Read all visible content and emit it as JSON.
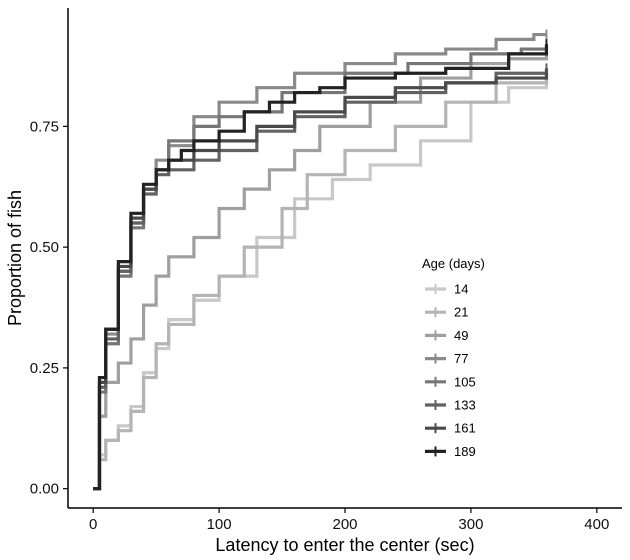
{
  "chart_data": {
    "type": "line",
    "step": true,
    "xlabel": "Latency to enter the center (sec)",
    "ylabel": "Proportion of fish",
    "xlim": [
      -20,
      420
    ],
    "ylim": [
      -0.04,
      0.995
    ],
    "xticks": [
      0,
      100,
      200,
      300,
      400
    ],
    "yticks": [
      0.0,
      0.25,
      0.5,
      0.75
    ],
    "ytick_labels": [
      "0.00",
      "0.25",
      "0.50",
      "0.75"
    ],
    "grid": false,
    "legend": {
      "title": "Age (days)",
      "position": "right-center"
    },
    "series": [
      {
        "name": "14",
        "color": "#c8c8c8",
        "x": [
          0,
          5,
          10,
          20,
          30,
          40,
          50,
          60,
          80,
          100,
          130,
          160,
          190,
          220,
          260,
          300,
          330,
          360
        ],
        "y": [
          0.0,
          0.07,
          0.1,
          0.13,
          0.17,
          0.24,
          0.29,
          0.35,
          0.39,
          0.44,
          0.52,
          0.6,
          0.64,
          0.67,
          0.72,
          0.8,
          0.83,
          0.85
        ]
      },
      {
        "name": "21",
        "color": "#b4b4b4",
        "x": [
          0,
          5,
          10,
          20,
          30,
          40,
          50,
          60,
          80,
          100,
          120,
          150,
          170,
          200,
          240,
          280,
          320,
          360
        ],
        "y": [
          0.0,
          0.06,
          0.1,
          0.12,
          0.16,
          0.23,
          0.3,
          0.34,
          0.4,
          0.44,
          0.5,
          0.58,
          0.65,
          0.7,
          0.75,
          0.8,
          0.84,
          0.86
        ]
      },
      {
        "name": "49",
        "color": "#9f9f9f",
        "x": [
          0,
          5,
          10,
          20,
          30,
          40,
          50,
          60,
          80,
          100,
          120,
          140,
          160,
          180,
          220,
          260,
          300,
          330,
          360
        ],
        "y": [
          0.0,
          0.15,
          0.22,
          0.26,
          0.31,
          0.38,
          0.44,
          0.48,
          0.52,
          0.58,
          0.62,
          0.66,
          0.7,
          0.75,
          0.8,
          0.85,
          0.88,
          0.89,
          0.9
        ]
      },
      {
        "name": "77",
        "color": "#8a8a8a",
        "x": [
          0,
          5,
          10,
          20,
          30,
          40,
          50,
          60,
          80,
          100,
          130,
          160,
          200,
          240,
          280,
          320,
          350,
          360
        ],
        "y": [
          0.0,
          0.22,
          0.32,
          0.45,
          0.55,
          0.62,
          0.68,
          0.71,
          0.77,
          0.8,
          0.83,
          0.86,
          0.88,
          0.9,
          0.91,
          0.93,
          0.94,
          0.94
        ]
      },
      {
        "name": "105",
        "color": "#767676",
        "x": [
          0,
          5,
          10,
          20,
          30,
          40,
          50,
          60,
          80,
          100,
          120,
          150,
          200,
          250,
          300,
          340,
          360
        ],
        "y": [
          0.0,
          0.2,
          0.3,
          0.44,
          0.54,
          0.62,
          0.66,
          0.72,
          0.75,
          0.77,
          0.78,
          0.82,
          0.86,
          0.88,
          0.9,
          0.91,
          0.91
        ]
      },
      {
        "name": "133",
        "color": "#626262",
        "x": [
          0,
          5,
          10,
          20,
          30,
          40,
          50,
          60,
          80,
          100,
          130,
          160,
          200,
          240,
          280,
          320,
          360
        ],
        "y": [
          0.0,
          0.21,
          0.31,
          0.45,
          0.55,
          0.61,
          0.65,
          0.66,
          0.68,
          0.7,
          0.74,
          0.77,
          0.8,
          0.82,
          0.84,
          0.86,
          0.87
        ]
      },
      {
        "name": "161",
        "color": "#4a4a4a",
        "x": [
          0,
          5,
          10,
          20,
          30,
          40,
          50,
          60,
          80,
          100,
          130,
          160,
          200,
          240,
          280,
          320,
          360
        ],
        "y": [
          0.0,
          0.22,
          0.33,
          0.46,
          0.56,
          0.62,
          0.66,
          0.68,
          0.7,
          0.72,
          0.75,
          0.78,
          0.81,
          0.83,
          0.84,
          0.85,
          0.86
        ]
      },
      {
        "name": "189",
        "color": "#222222",
        "x": [
          0,
          5,
          10,
          20,
          30,
          40,
          50,
          60,
          70,
          80,
          100,
          120,
          140,
          160,
          180,
          200,
          240,
          280,
          300,
          330,
          360
        ],
        "y": [
          0.0,
          0.23,
          0.33,
          0.47,
          0.57,
          0.63,
          0.66,
          0.68,
          0.7,
          0.72,
          0.74,
          0.78,
          0.8,
          0.82,
          0.83,
          0.85,
          0.86,
          0.87,
          0.87,
          0.9,
          0.92
        ]
      }
    ]
  }
}
